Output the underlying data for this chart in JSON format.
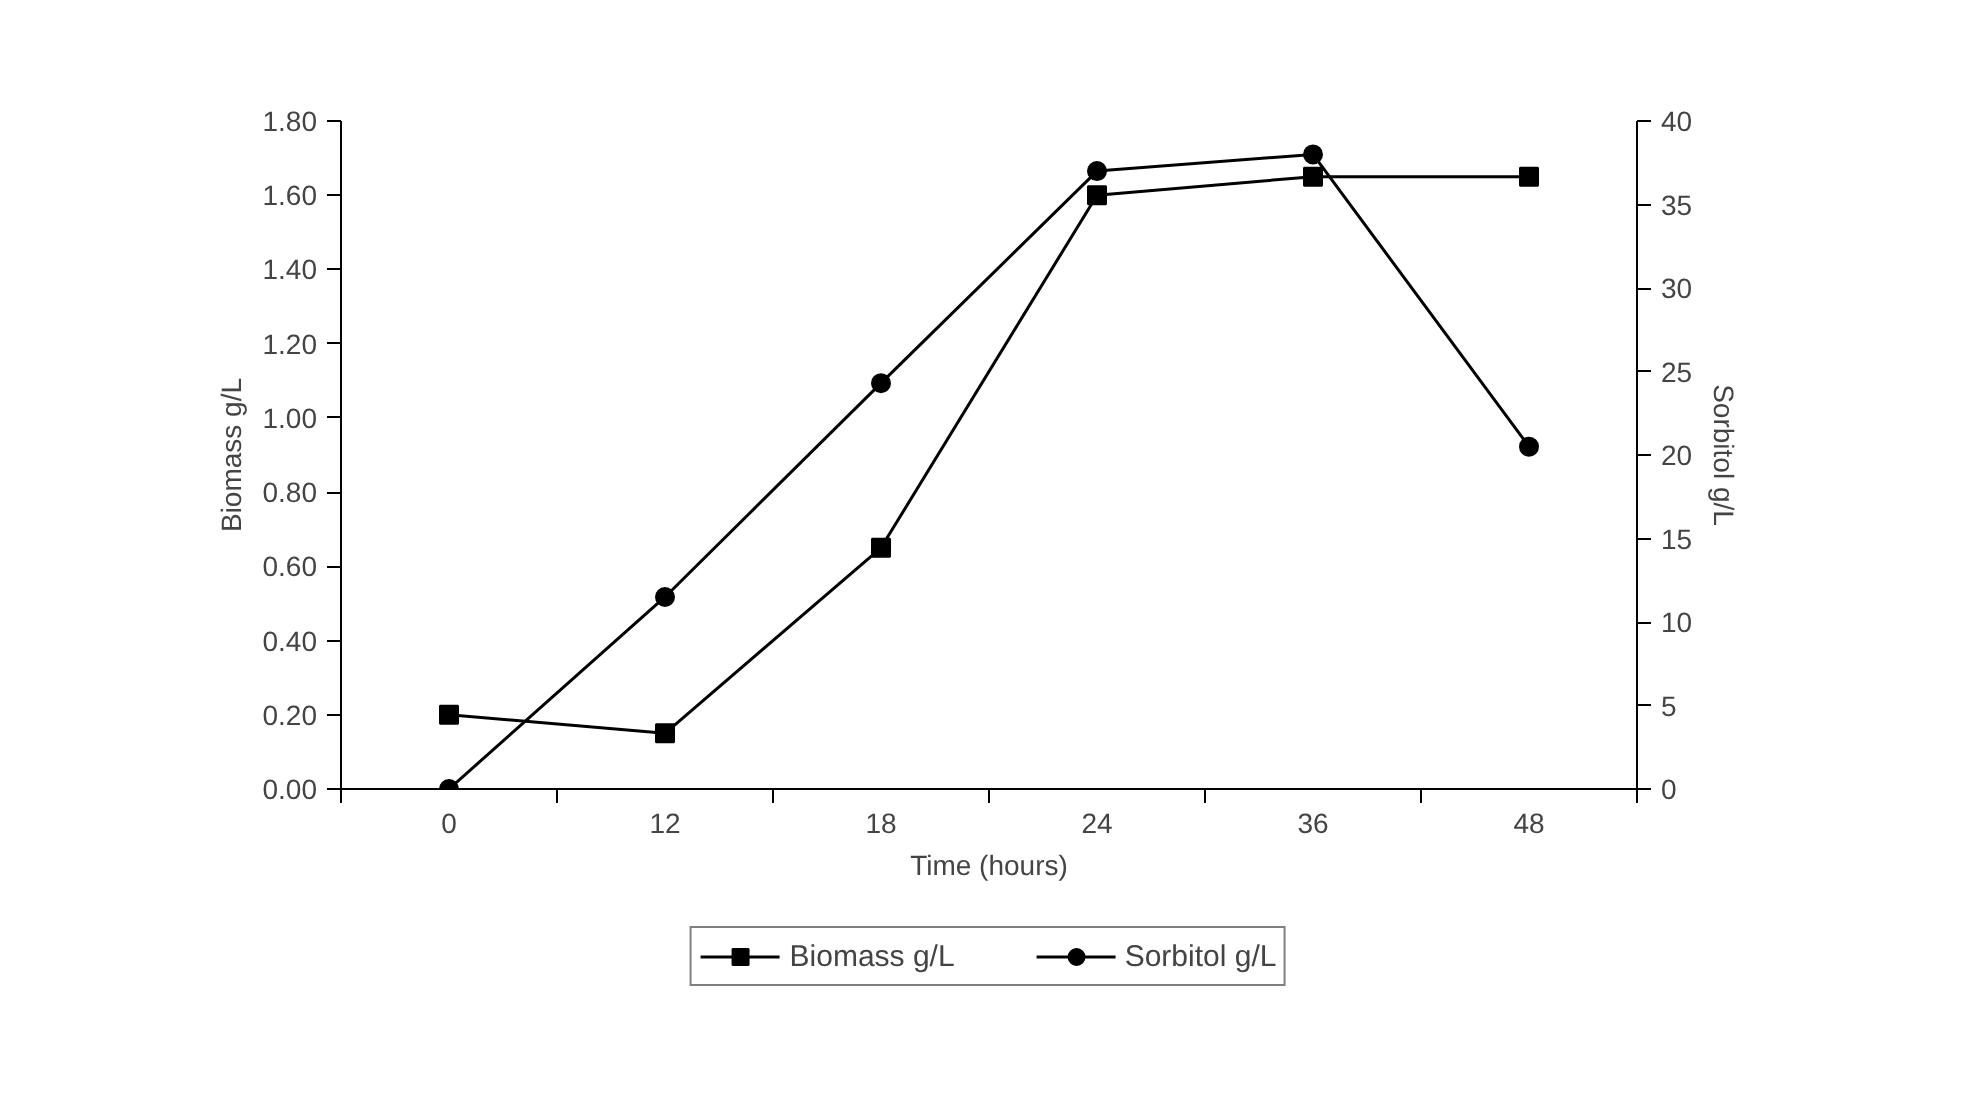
{
  "chart_data": {
    "type": "line",
    "xlabel": "Time (hours)",
    "ylabel": "Biomass g/L",
    "y2label": "Sorbitol g/L",
    "categories": [
      "0",
      "12",
      "18",
      "24",
      "36",
      "48"
    ],
    "series": [
      {
        "name": "Biomass g/L",
        "color": "#000000",
        "marker": "square",
        "values": [
          0.2,
          0.15,
          0.65,
          1.6,
          1.65,
          1.65
        ]
      },
      {
        "name": "Sorbitol g/L",
        "color": "#000000",
        "marker": "circle",
        "axis": "y2",
        "values": [
          0,
          11.5,
          24.3,
          37,
          38,
          20.5
        ]
      }
    ],
    "ylim": [
      0,
      1.8
    ],
    "yticks": [
      {
        "value": 0,
        "label": "0.00"
      },
      {
        "value": 0.2,
        "label": "0.20"
      },
      {
        "value": 0.4,
        "label": "0.40"
      },
      {
        "value": 0.6,
        "label": "0.60"
      },
      {
        "value": 0.8,
        "label": "0.80"
      },
      {
        "value": 1.0,
        "label": "1.00"
      },
      {
        "value": 1.2,
        "label": "1.20"
      },
      {
        "value": 1.4,
        "label": "1.40"
      },
      {
        "value": 1.6,
        "label": "1.60"
      },
      {
        "value": 1.8,
        "label": "1.80"
      }
    ],
    "y2lim": [
      0,
      40
    ],
    "y2ticks": [
      0,
      5,
      10,
      15,
      20,
      25,
      30,
      35,
      40
    ],
    "grid": false,
    "legend": "bottom",
    "line_style": "solid"
  }
}
